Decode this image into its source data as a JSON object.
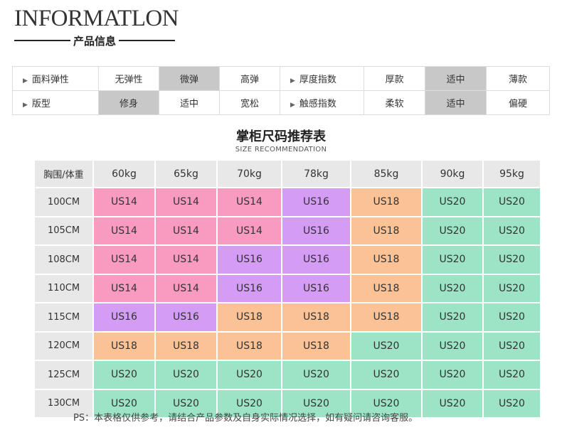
{
  "header": {
    "title_en": "INFORMATLON",
    "title_cn": "产品信息"
  },
  "attributes": {
    "rows": [
      {
        "left": {
          "label": "面料弹性",
          "options": [
            "无弹性",
            "微弹",
            "高弹"
          ],
          "selected": 1
        },
        "right": {
          "label": "厚度指数",
          "options": [
            "厚款",
            "适中",
            "薄款"
          ],
          "selected": 1
        }
      },
      {
        "left": {
          "label": "版型",
          "options": [
            "修身",
            "适中",
            "宽松"
          ],
          "selected": 0
        },
        "right": {
          "label": "触感指数",
          "options": [
            "柔软",
            "适中",
            "偏硬"
          ],
          "selected": 1
        }
      }
    ]
  },
  "size_chart": {
    "title": "掌柜尺码推荐表",
    "subtitle": "SIZE RECOMMENDATION",
    "corner": "胸围/体重",
    "weights": [
      "60kg",
      "65kg",
      "70kg",
      "78kg",
      "85kg",
      "90kg",
      "95kg"
    ],
    "rows": [
      {
        "chest": "100CM",
        "sizes": [
          "US14",
          "US14",
          "US14",
          "US16",
          "US18",
          "US20",
          "US20"
        ]
      },
      {
        "chest": "105CM",
        "sizes": [
          "US14",
          "US14",
          "US14",
          "US16",
          "US18",
          "US20",
          "US20"
        ]
      },
      {
        "chest": "108CM",
        "sizes": [
          "US14",
          "US14",
          "US16",
          "US16",
          "US18",
          "US20",
          "US20"
        ]
      },
      {
        "chest": "110CM",
        "sizes": [
          "US14",
          "US14",
          "US16",
          "US16",
          "US18",
          "US20",
          "US20"
        ]
      },
      {
        "chest": "115CM",
        "sizes": [
          "US16",
          "US16",
          "US18",
          "US18",
          "US18",
          "US20",
          "US20"
        ]
      },
      {
        "chest": "120CM",
        "sizes": [
          "US18",
          "US18",
          "US18",
          "US18",
          "US20",
          "US20",
          "US20"
        ]
      },
      {
        "chest": "125CM",
        "sizes": [
          "US20",
          "US20",
          "US20",
          "US20",
          "US20",
          "US20",
          "US20"
        ]
      },
      {
        "chest": "130CM",
        "sizes": [
          "US20",
          "US20",
          "US20",
          "US20",
          "US20",
          "US20",
          "US20"
        ]
      }
    ],
    "size_colors": {
      "US14": "#f99bc0",
      "US16": "#d49cf5",
      "US18": "#fbc295",
      "US20": "#9de3c6"
    }
  },
  "footnote": "PS：本表格仅供参考，请结合产品参数及自身实际情况选择，如有疑问请咨询客服。"
}
